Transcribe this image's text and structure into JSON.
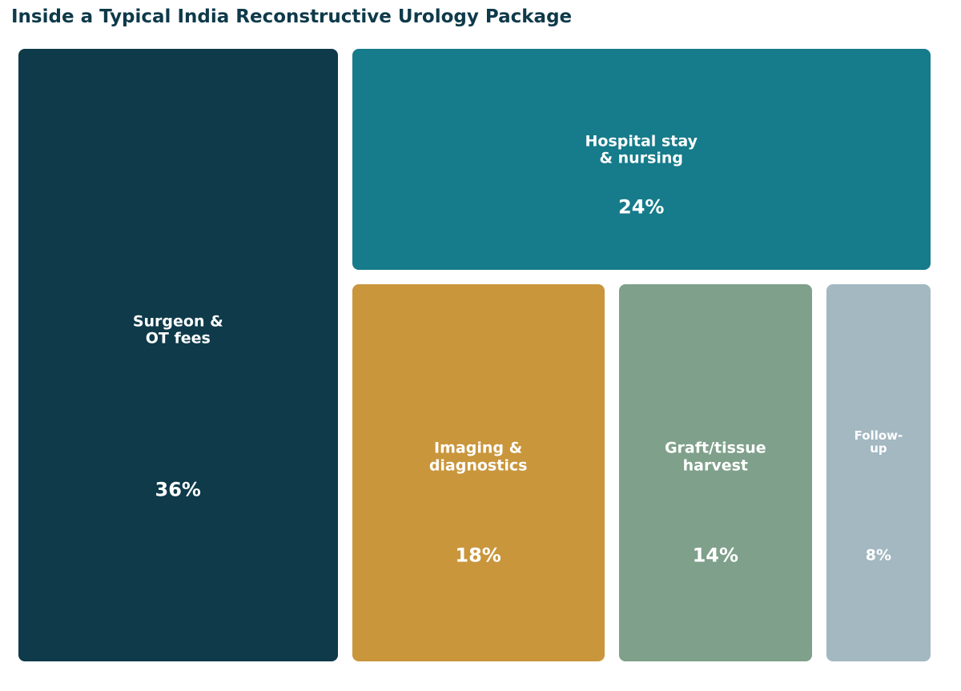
{
  "chart_data": {
    "type": "treemap",
    "title": "Inside a Typical India Reconstructive Urology Package",
    "unit": "%",
    "items": [
      {
        "label": "Surgeon &\nOT fees",
        "value": 36,
        "value_label": "36%",
        "color": "#0e3a4a"
      },
      {
        "label": "Hospital stay\n& nursing",
        "value": 24,
        "value_label": "24%",
        "color": "#167b8a"
      },
      {
        "label": "Imaging &\ndiagnostics",
        "value": 18,
        "value_label": "18%",
        "color": "#c9963c"
      },
      {
        "label": "Graft/tissue\nharvest",
        "value": 14,
        "value_label": "14%",
        "color": "#7fa08b"
      },
      {
        "label": "Follow-\nup",
        "value": 8,
        "value_label": "8%",
        "color": "#a3b8c1"
      }
    ]
  }
}
